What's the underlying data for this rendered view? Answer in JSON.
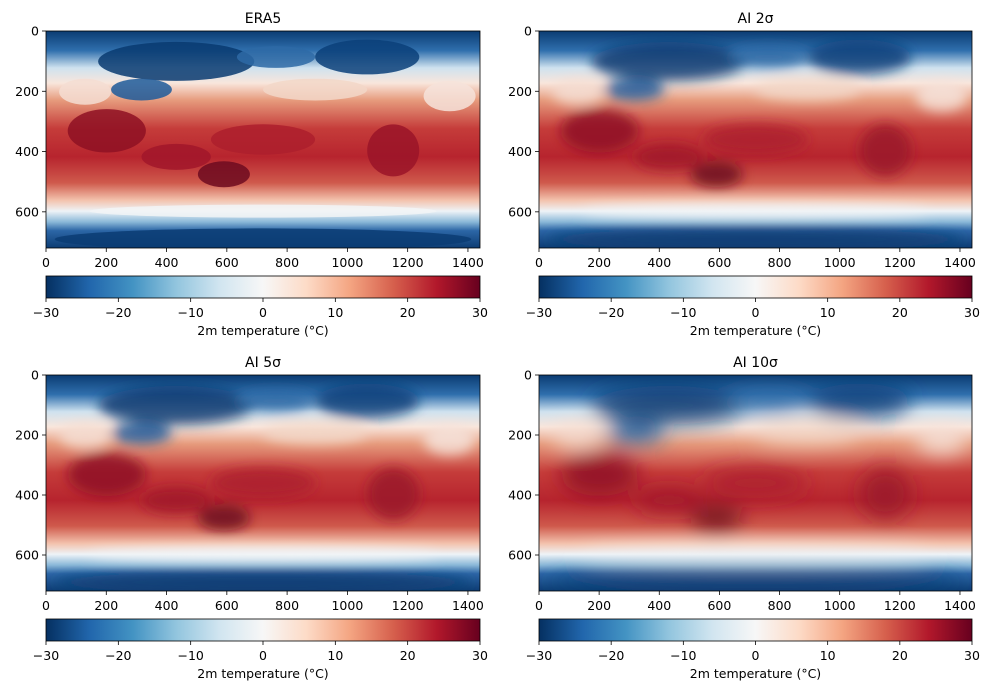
{
  "figure": {
    "kind": "2x2 grid of heatmap panels, each with a horizontal colorbar"
  },
  "chart_data": [
    {
      "type": "heatmap",
      "title": "ERA5",
      "field": "2m temperature",
      "xlim": [
        0,
        1440
      ],
      "ylim": [
        720,
        0
      ],
      "xticks": [
        0,
        200,
        400,
        600,
        800,
        1000,
        1200,
        1400
      ],
      "yticks": [
        0,
        200,
        400,
        600
      ],
      "colorbar": {
        "label": "2m temperature (°C)",
        "range": [
          -30,
          30
        ],
        "ticks": [
          -30,
          -20,
          -10,
          0,
          10,
          20,
          30
        ],
        "cmap": "RdBu_r"
      }
    },
    {
      "type": "heatmap",
      "title": "AI 2σ",
      "field": "2m temperature",
      "xlim": [
        0,
        1440
      ],
      "ylim": [
        720,
        0
      ],
      "xticks": [
        0,
        200,
        400,
        600,
        800,
        1000,
        1200,
        1400
      ],
      "yticks": [
        0,
        200,
        400,
        600
      ],
      "colorbar": {
        "label": "2m temperature (°C)",
        "range": [
          -30,
          30
        ],
        "ticks": [
          -30,
          -20,
          -10,
          0,
          10,
          20,
          30
        ],
        "cmap": "RdBu_r"
      }
    },
    {
      "type": "heatmap",
      "title": "AI 5σ",
      "field": "2m temperature",
      "xlim": [
        0,
        1440
      ],
      "ylim": [
        720,
        0
      ],
      "xticks": [
        0,
        200,
        400,
        600,
        800,
        1000,
        1200,
        1400
      ],
      "yticks": [
        0,
        200,
        400,
        600
      ],
      "colorbar": {
        "label": "2m temperature (°C)",
        "range": [
          -30,
          30
        ],
        "ticks": [
          -30,
          -20,
          -10,
          0,
          10,
          20,
          30
        ],
        "cmap": "RdBu_r"
      }
    },
    {
      "type": "heatmap",
      "title": "AI 10σ",
      "field": "2m temperature",
      "xlim": [
        0,
        1440
      ],
      "ylim": [
        720,
        0
      ],
      "xticks": [
        0,
        200,
        400,
        600,
        800,
        1000,
        1200,
        1400
      ],
      "yticks": [
        0,
        200,
        400,
        600
      ],
      "colorbar": {
        "label": "2m temperature (°C)",
        "range": [
          -30,
          30
        ],
        "ticks": [
          -30,
          -20,
          -10,
          0,
          10,
          20,
          30
        ],
        "cmap": "RdBu_r"
      }
    }
  ],
  "colors": {
    "cmap_stops": [
      "#053061",
      "#2166ac",
      "#4393c3",
      "#92c5de",
      "#d1e5f0",
      "#f7f7f7",
      "#fddbc7",
      "#f4a582",
      "#d6604d",
      "#b2182b",
      "#67001f"
    ]
  }
}
